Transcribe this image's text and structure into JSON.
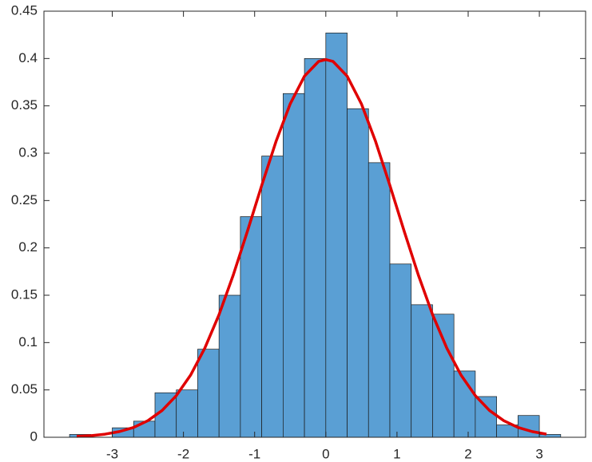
{
  "chart_data": {
    "type": "histogram",
    "bins": [
      -3.6,
      -3.3,
      -3.0,
      -2.7,
      -2.4,
      -2.1,
      -1.8,
      -1.5,
      -1.2,
      -0.9,
      -0.6,
      -0.3,
      0,
      0.3,
      0.6,
      0.9,
      1.2,
      1.5,
      1.8,
      2.1,
      2.4,
      2.7,
      3.0,
      3.3
    ],
    "counts": [
      0.003,
      0,
      0.01,
      0.017,
      0.047,
      0.05,
      0.093,
      0.15,
      0.233,
      0.297,
      0.363,
      0.4,
      0.427,
      0.347,
      0.29,
      0.183,
      0.14,
      0.13,
      0.07,
      0.043,
      0.013,
      0.023,
      0.003
    ],
    "color": "#5a9fd4",
    "edge_color": "#1a1a1a",
    "lines": [
      {
        "color": "#e00000",
        "x": [
          -3.5,
          -3.3,
          -3.1,
          -2.9,
          -2.7,
          -2.5,
          -2.3,
          -2.1,
          -1.9,
          -1.7,
          -1.5,
          -1.3,
          -1.1,
          -0.9,
          -0.7,
          -0.5,
          -0.3,
          -0.1,
          0,
          0.1,
          0.3,
          0.5,
          0.7,
          0.9,
          1.1,
          1.3,
          1.5,
          1.7,
          1.9,
          2.1,
          2.3,
          2.5,
          2.7,
          2.9,
          3.1
        ],
        "values": [
          0.0009,
          0.0017,
          0.0033,
          0.006,
          0.0104,
          0.0175,
          0.0283,
          0.044,
          0.0656,
          0.0941,
          0.1295,
          0.1714,
          0.2179,
          0.2661,
          0.3123,
          0.3521,
          0.3814,
          0.397,
          0.3989,
          0.397,
          0.3814,
          0.3521,
          0.3123,
          0.2661,
          0.2179,
          0.1714,
          0.1295,
          0.0941,
          0.0656,
          0.044,
          0.0283,
          0.0175,
          0.0104,
          0.006,
          0.0033
        ]
      }
    ],
    "xlim": [
      -3.96,
      3.65
    ],
    "ylim": [
      0,
      0.45
    ],
    "xticks": [
      -3,
      -2,
      -1,
      0,
      1,
      2,
      3
    ],
    "yticks": [
      0,
      0.05,
      0.1,
      0.15,
      0.2,
      0.25,
      0.3,
      0.35,
      0.4,
      0.45
    ]
  }
}
